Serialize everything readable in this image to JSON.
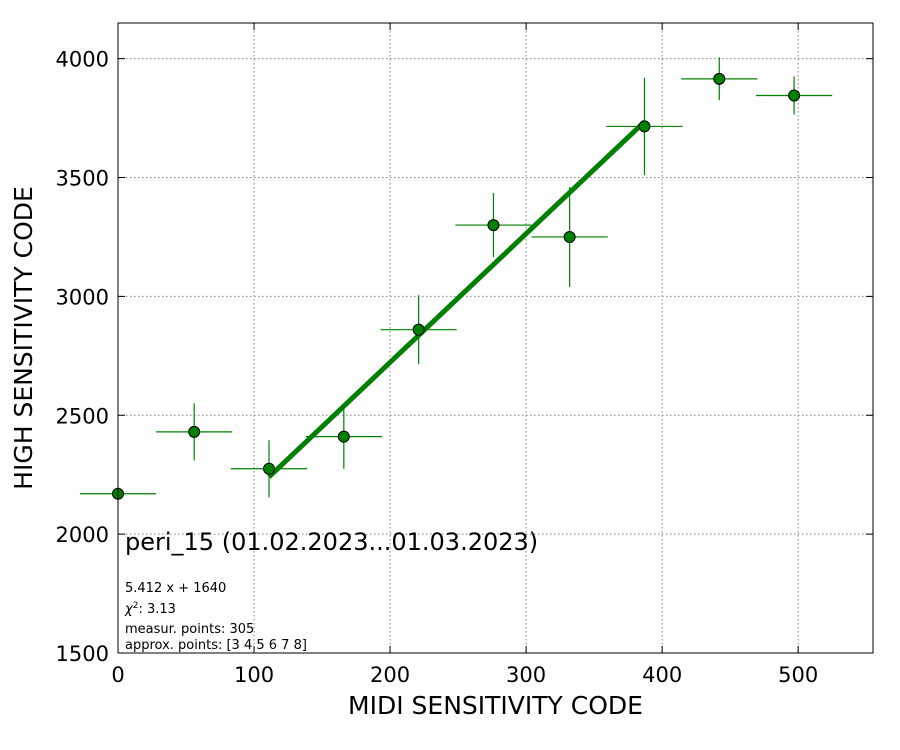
{
  "chart_data": {
    "type": "scatter",
    "xlabel": "MIDI SENSITIVITY CODE",
    "ylabel": "HIGH SENSITIVITY CODE",
    "xlim": [
      0,
      555
    ],
    "ylim": [
      1500,
      4150
    ],
    "xticks": [
      0,
      100,
      200,
      300,
      400,
      500
    ],
    "yticks": [
      1500,
      2000,
      2500,
      3000,
      3500,
      4000
    ],
    "grid": true,
    "grid_style": "dotted",
    "colors": {
      "points": "#008000",
      "fit_line": "#008000",
      "point_edge": "#000000"
    },
    "series": [
      {
        "points": [
          {
            "x": 0,
            "y": 2170,
            "xerr": 28,
            "yerr": 0
          },
          {
            "x": 56,
            "y": 2430,
            "xerr": 28,
            "yerr": 120
          },
          {
            "x": 111,
            "y": 2275,
            "xerr": 28,
            "yerr": 120
          },
          {
            "x": 166,
            "y": 2410,
            "xerr": 28,
            "yerr": 135
          },
          {
            "x": 221,
            "y": 2860,
            "xerr": 28,
            "yerr": 145
          },
          {
            "x": 276,
            "y": 3300,
            "xerr": 28,
            "yerr": 135
          },
          {
            "x": 332,
            "y": 3250,
            "xerr": 28,
            "yerr": 210
          },
          {
            "x": 387,
            "y": 3715,
            "xerr": 28,
            "yerr": 205
          },
          {
            "x": 442,
            "y": 3915,
            "xerr": 28,
            "yerr": 90
          },
          {
            "x": 497,
            "y": 3845,
            "xerr": 28,
            "yerr": 80
          }
        ]
      }
    ],
    "fit": {
      "slope": 5.412,
      "intercept": 1640,
      "x_from": 111,
      "x_to": 387
    },
    "annotations": {
      "title_text": "peri_15 (01.02.2023...01.03.2023)",
      "equation": "5.412 x + 1640",
      "chi_label": "χ",
      "chi_sup": "2",
      "chi_value": ": 3.13",
      "measur_points": "measur. points: 305",
      "approx_points": "approx. points: [3 4 5 6 7 8]"
    }
  }
}
